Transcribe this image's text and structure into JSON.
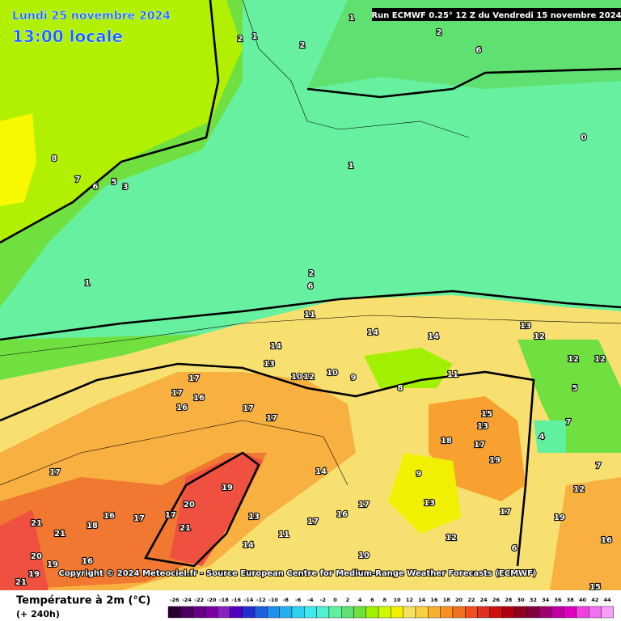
{
  "header": {
    "date": "Lundi 25 novembre 2024",
    "time": "13:00 locale",
    "run": "Run ECMWF 0.25° 12 Z du Vendredi 15 novembre 2024"
  },
  "copyright": "Copyright © 2024 Meteociel.fr - Source European Centre for Medium-Range Weather Forecasts (ECMWF)",
  "legend": {
    "title": "Température à 2m (°C)",
    "lead": "(+ 240h)",
    "ticks": [
      -26,
      -24,
      -22,
      -20,
      -18,
      -16,
      -14,
      -12,
      -10,
      -8,
      -6,
      -4,
      -2,
      0,
      2,
      4,
      6,
      8,
      10,
      12,
      14,
      16,
      18,
      20,
      22,
      24,
      26,
      28,
      30,
      32,
      34,
      36,
      38,
      40,
      42,
      44
    ],
    "colors": [
      "#2a0030",
      "#4a0060",
      "#660080",
      "#7a00a0",
      "#8a20c0",
      "#5000c0",
      "#2030d0",
      "#2060e0",
      "#2090f0",
      "#20b0f0",
      "#30d0f0",
      "#40e8f0",
      "#50f0d0",
      "#60f0a0",
      "#60e070",
      "#70e040",
      "#a0f000",
      "#d0f800",
      "#f0f000",
      "#f8e060",
      "#f8d040",
      "#f8b030",
      "#f89020",
      "#f07020",
      "#f05020",
      "#e03020",
      "#d01010",
      "#b00010",
      "#900020",
      "#800040",
      "#a00070",
      "#c000a0",
      "#e000c0",
      "#f040e0",
      "#f070f0",
      "#f8a0f8"
    ]
  },
  "map_labels": [
    "8",
    "7",
    "6",
    "5",
    "3",
    "1",
    "2",
    "1",
    "2",
    "1",
    "2",
    "6",
    "1",
    "0",
    "2",
    "6",
    "11",
    "14",
    "14",
    "13",
    "12",
    "12",
    "12",
    "14",
    "13",
    "10",
    "12",
    "10",
    "9",
    "8",
    "11",
    "17",
    "17",
    "16",
    "16",
    "17",
    "17",
    "15",
    "13",
    "18",
    "17",
    "19",
    "17",
    "19",
    "20",
    "17",
    "17",
    "16",
    "18",
    "21",
    "21",
    "21",
    "20",
    "19",
    "16",
    "21",
    "19",
    "14",
    "17",
    "17",
    "16",
    "11",
    "12",
    "17",
    "19",
    "12",
    "16",
    "15",
    "6",
    "9",
    "13",
    "13",
    "10",
    "14",
    "4",
    "5",
    "7",
    "7"
  ]
}
